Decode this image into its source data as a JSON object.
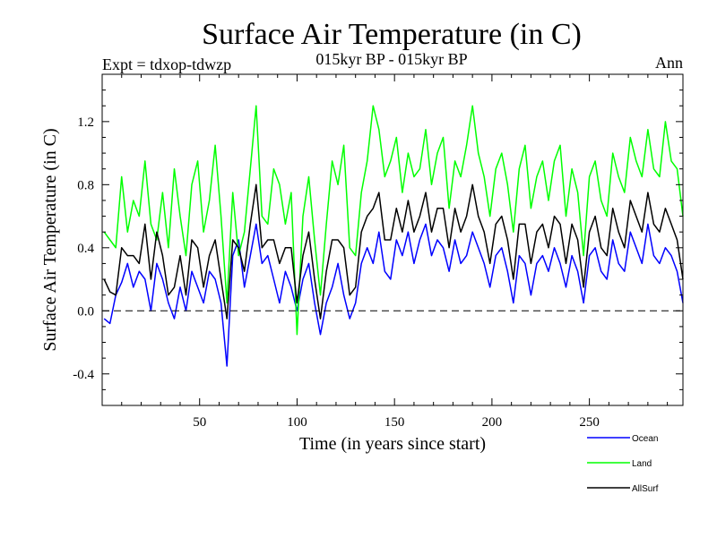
{
  "chart_data": {
    "type": "line",
    "title": "Surface Air Temperature (in C)",
    "subtitle": "015kyr BP - 015kyr BP",
    "left_label": "Expt = tdxop-tdwzp",
    "right_label": "Ann",
    "xlabel": "Time (in years since start)",
    "ylabel": "Surface Air Temperature (in C)",
    "xlim": [
      0,
      298
    ],
    "ylim": [
      -0.6,
      1.5
    ],
    "x_ticks": [
      50,
      100,
      150,
      200,
      250
    ],
    "x_tick_labels": [
      "50",
      "100",
      "150",
      "200",
      "250"
    ],
    "y_ticks": [
      -0.4,
      0.0,
      0.4,
      0.8,
      1.2
    ],
    "y_tick_labels": [
      "-0.4",
      "0.0",
      "0.4",
      "0.8",
      "1.2"
    ],
    "zero_line": true,
    "grid": false,
    "legend_position": "bottom-right",
    "x": [
      1,
      4,
      7,
      10,
      13,
      16,
      19,
      22,
      25,
      28,
      31,
      34,
      37,
      40,
      43,
      46,
      49,
      52,
      55,
      58,
      61,
      64,
      67,
      70,
      73,
      76,
      79,
      82,
      85,
      88,
      91,
      94,
      97,
      100,
      103,
      106,
      109,
      112,
      115,
      118,
      121,
      124,
      127,
      130,
      133,
      136,
      139,
      142,
      145,
      148,
      151,
      154,
      157,
      160,
      163,
      166,
      169,
      172,
      175,
      178,
      181,
      184,
      187,
      190,
      193,
      196,
      199,
      202,
      205,
      208,
      211,
      214,
      217,
      220,
      223,
      226,
      229,
      232,
      235,
      238,
      241,
      244,
      247,
      250,
      253,
      256,
      259,
      262,
      265,
      268,
      271,
      274,
      277,
      280,
      283,
      286,
      289,
      292,
      295,
      298
    ],
    "series": [
      {
        "name": "Ocean",
        "color": "#0000ff",
        "values": [
          -0.05,
          -0.08,
          0.1,
          0.18,
          0.3,
          0.15,
          0.25,
          0.2,
          0.0,
          0.3,
          0.2,
          0.05,
          -0.05,
          0.15,
          0.0,
          0.25,
          0.15,
          0.05,
          0.25,
          0.2,
          0.05,
          -0.35,
          0.35,
          0.45,
          0.15,
          0.35,
          0.55,
          0.3,
          0.35,
          0.2,
          0.05,
          0.25,
          0.15,
          0.0,
          0.2,
          0.3,
          0.05,
          -0.15,
          0.05,
          0.15,
          0.3,
          0.1,
          -0.05,
          0.05,
          0.3,
          0.4,
          0.3,
          0.5,
          0.25,
          0.2,
          0.45,
          0.35,
          0.5,
          0.3,
          0.45,
          0.55,
          0.35,
          0.45,
          0.4,
          0.25,
          0.45,
          0.3,
          0.35,
          0.5,
          0.4,
          0.3,
          0.15,
          0.35,
          0.4,
          0.25,
          0.05,
          0.35,
          0.3,
          0.1,
          0.3,
          0.35,
          0.25,
          0.4,
          0.3,
          0.15,
          0.35,
          0.25,
          0.05,
          0.35,
          0.4,
          0.25,
          0.2,
          0.45,
          0.3,
          0.25,
          0.5,
          0.4,
          0.3,
          0.55,
          0.35,
          0.3,
          0.4,
          0.35,
          0.25,
          0.05
        ]
      },
      {
        "name": "Land",
        "color": "#00ff00",
        "values": [
          0.5,
          0.45,
          0.4,
          0.85,
          0.5,
          0.7,
          0.6,
          0.95,
          0.55,
          0.45,
          0.75,
          0.4,
          0.9,
          0.6,
          0.35,
          0.8,
          0.95,
          0.5,
          0.7,
          1.05,
          0.6,
          0.05,
          0.75,
          0.35,
          0.5,
          0.9,
          1.3,
          0.6,
          0.55,
          0.9,
          0.8,
          0.55,
          0.75,
          -0.15,
          0.6,
          0.85,
          0.45,
          0.1,
          0.55,
          0.95,
          0.8,
          1.05,
          0.4,
          0.35,
          0.75,
          0.95,
          1.3,
          1.15,
          0.85,
          0.95,
          1.1,
          0.75,
          1.0,
          0.85,
          0.9,
          1.15,
          0.8,
          1.0,
          1.1,
          0.65,
          0.95,
          0.85,
          1.05,
          1.3,
          1.0,
          0.85,
          0.6,
          0.9,
          1.0,
          0.8,
          0.5,
          0.9,
          1.05,
          0.65,
          0.85,
          0.95,
          0.7,
          0.95,
          1.05,
          0.6,
          0.9,
          0.75,
          0.35,
          0.85,
          0.95,
          0.7,
          0.6,
          1.0,
          0.85,
          0.75,
          1.1,
          0.95,
          0.85,
          1.15,
          0.9,
          0.85,
          1.2,
          0.95,
          0.9,
          0.6
        ]
      },
      {
        "name": "AllSurf",
        "color": "#000000",
        "values": [
          0.2,
          0.12,
          0.1,
          0.4,
          0.35,
          0.35,
          0.3,
          0.55,
          0.2,
          0.5,
          0.35,
          0.1,
          0.15,
          0.35,
          0.1,
          0.45,
          0.4,
          0.15,
          0.35,
          0.45,
          0.2,
          -0.05,
          0.45,
          0.4,
          0.25,
          0.55,
          0.8,
          0.4,
          0.45,
          0.45,
          0.3,
          0.4,
          0.4,
          0.05,
          0.35,
          0.5,
          0.2,
          -0.05,
          0.25,
          0.45,
          0.45,
          0.4,
          0.1,
          0.15,
          0.5,
          0.6,
          0.65,
          0.75,
          0.45,
          0.45,
          0.65,
          0.5,
          0.7,
          0.5,
          0.6,
          0.75,
          0.5,
          0.65,
          0.65,
          0.4,
          0.65,
          0.5,
          0.6,
          0.8,
          0.6,
          0.5,
          0.3,
          0.55,
          0.6,
          0.45,
          0.2,
          0.55,
          0.55,
          0.3,
          0.5,
          0.55,
          0.4,
          0.6,
          0.55,
          0.3,
          0.55,
          0.45,
          0.15,
          0.5,
          0.6,
          0.4,
          0.35,
          0.65,
          0.5,
          0.4,
          0.7,
          0.6,
          0.5,
          0.75,
          0.55,
          0.5,
          0.65,
          0.55,
          0.45,
          0.2
        ]
      }
    ]
  }
}
